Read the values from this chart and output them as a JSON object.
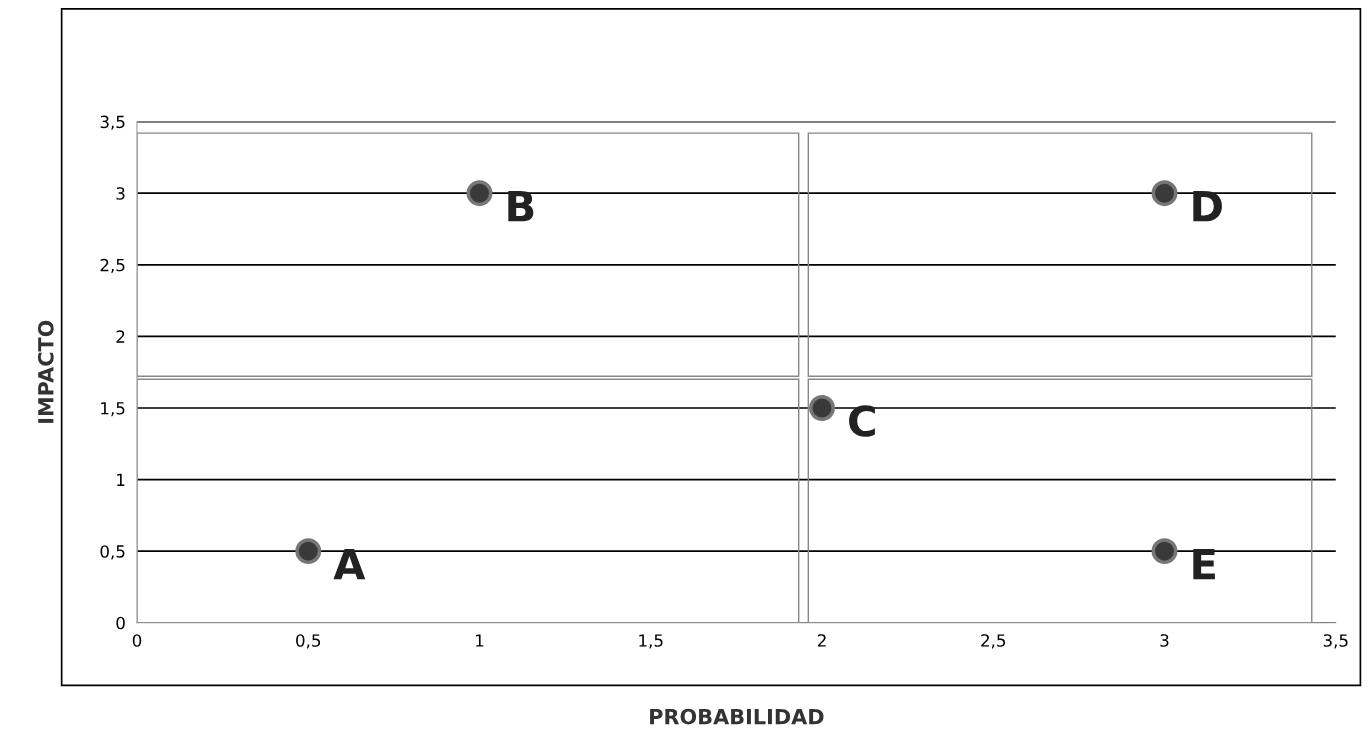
{
  "chart_data": {
    "type": "scatter",
    "xlabel": "PROBABILIDAD",
    "ylabel": "IMPACTO",
    "x": [
      0.5,
      1,
      2,
      3,
      3
    ],
    "series": [
      {
        "color": "#3a3a3a",
        "values": [
          0.5,
          3,
          1.5,
          3,
          0.5
        ]
      }
    ],
    "marker": "circle",
    "annotations": [
      {
        "text": "A",
        "x": 0.5,
        "y": 0.5
      },
      {
        "text": "B",
        "x": 1,
        "y": 3
      },
      {
        "text": "C",
        "x": 2,
        "y": 1.5
      },
      {
        "text": "D",
        "x": 3,
        "y": 3
      },
      {
        "text": "E",
        "x": 3,
        "y": 0.5
      }
    ],
    "xlim": [
      0,
      3.5
    ],
    "ylim": [
      0,
      3.5
    ],
    "xticks": [
      0,
      {
        "value": 0.5,
        "label": "0,5"
      },
      1,
      {
        "value": 1.5,
        "label": "1,5"
      },
      2,
      {
        "value": 2.5,
        "label": "2,5"
      },
      3,
      {
        "value": 3.5,
        "label": "3,5"
      }
    ],
    "yticks": [
      0,
      {
        "value": 0.5,
        "label": "0,5"
      },
      1,
      {
        "value": 1.5,
        "label": "1,5"
      },
      2,
      {
        "value": 2.5,
        "label": "2,5"
      },
      3,
      {
        "value": 3.5,
        "label": "3,5"
      }
    ],
    "grid": "y",
    "legend": false
  }
}
